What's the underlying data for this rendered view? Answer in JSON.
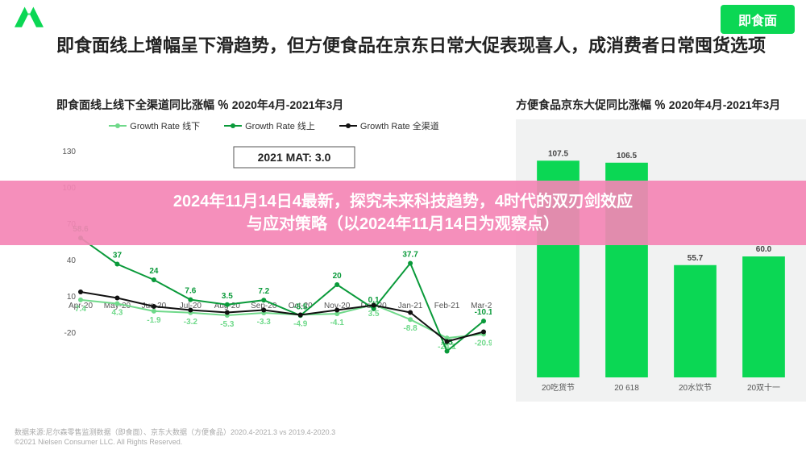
{
  "badge": "即食面",
  "title": "即食面线上增幅呈下滑趋势，但方便食品在京东日常大促表现喜人，成消费者日常囤货选项",
  "overlay_line1": "2024年11月14日4最新，探究未来科技趋势，4时代的双刃剑效应",
  "overlay_line2": "与应对策略（以2024年11月14日为观察点）",
  "footer_line1": "数据来源:尼尔森零售监测数据（即食面）、京东大数据（方便食品）2020.4-2021.3 vs 2019.4-2020.3",
  "footer_line2": "©2021 Nielsen Consumer LLC. All Rights Reserved.",
  "mat_label": "2021 MAT: 3.0",
  "line_chart": {
    "title": "即食面线上线下全渠道同比涨幅 ％ 2020年4月-2021年3月",
    "legend": [
      {
        "label": "Growth Rate 线下",
        "color": "#6fd98a"
      },
      {
        "label": "Growth Rate 线上",
        "color": "#0a9a3a"
      },
      {
        "label": "Growth Rate 全渠道",
        "color": "#111111"
      }
    ],
    "categories": [
      "Apr-20",
      "May-20",
      "Jun-20",
      "Jul-20",
      "Aug-20",
      "Sep-20",
      "Oct-20",
      "Nov-20",
      "Dec-20",
      "Jan-21",
      "Feb-21",
      "Mar-21"
    ],
    "ylim": [
      -50,
      130
    ],
    "yticks": [
      -20,
      10,
      40,
      70,
      100,
      130
    ],
    "series_offline": {
      "color": "#6fd98a",
      "values": [
        7.4,
        4.3,
        -1.9,
        -3.2,
        -5.3,
        -3.3,
        -4.9,
        -4.1,
        3.5,
        -8.8,
        -24.1,
        -20.9
      ],
      "label_dy": 14
    },
    "series_online": {
      "color": "#0a9a3a",
      "values": [
        58.6,
        37,
        24,
        7.6,
        3.5,
        7.2,
        -5.5,
        20,
        0.1,
        37.7,
        -35,
        -10.1
      ],
      "label_dy": -8
    },
    "series_all": {
      "color": "#111111",
      "values": [
        14,
        9,
        2,
        -1,
        -3,
        -1,
        -5,
        -1,
        3,
        -3,
        -27,
        -19
      ],
      "label_dy": 0,
      "hide_labels": true
    }
  },
  "bar_chart": {
    "title": "方便食品京东大促同比涨幅 ％ 2020年4月-2021年3月",
    "categories": [
      "20吃货节",
      "20 618",
      "20水饮节",
      "20双十一"
    ],
    "values": [
      107.5,
      106.5,
      55.7,
      60.0
    ],
    "bar_color": "#0bd754",
    "label_color": "#444444",
    "background": "#f1f2f2",
    "ylim": [
      0,
      120
    ]
  }
}
